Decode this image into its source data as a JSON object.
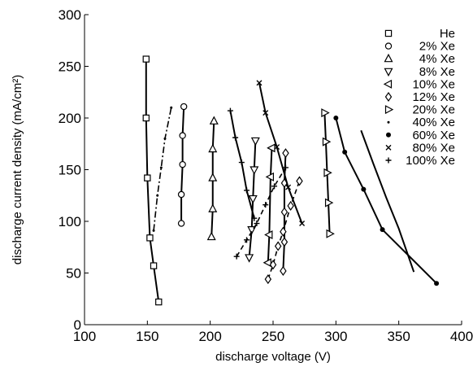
{
  "chart_data": {
    "type": "line",
    "title": "",
    "xlabel": "discharge voltage (V)",
    "ylabel": "discharge current density (mA/cm²)",
    "xlim": [
      100,
      400
    ],
    "ylim": [
      0,
      300
    ],
    "x_ticks": [
      "100",
      "150",
      "200",
      "250",
      "300",
      "350",
      "400"
    ],
    "y_ticks": [
      "0",
      "50",
      "100",
      "150",
      "200",
      "250",
      "300"
    ],
    "grid": false,
    "legend_position": "top-right",
    "series": [
      {
        "name": "He",
        "marker": "square",
        "line": "solid",
        "x": [
          149,
          149,
          150,
          152,
          155,
          159
        ],
        "y": [
          257,
          200,
          142,
          84,
          57,
          22
        ]
      },
      {
        "name": "2% Xe",
        "marker": "circle",
        "line": "solid",
        "x": [
          177,
          177,
          178,
          178,
          179
        ],
        "y": [
          98,
          126,
          155,
          183,
          211
        ]
      },
      {
        "name": "4% Xe",
        "marker": "triangle-up",
        "line": "solid",
        "x": [
          201,
          202,
          202,
          202,
          203
        ],
        "y": [
          85,
          112,
          142,
          170,
          197
        ]
      },
      {
        "name": "8% Xe",
        "marker": "triangle-down",
        "line": "solid",
        "x": [
          231,
          233,
          234,
          235,
          236
        ],
        "y": [
          65,
          92,
          122,
          150,
          178
        ]
      },
      {
        "name": "10% Xe",
        "marker": "triangle-left",
        "line": "solid",
        "x": [
          246,
          247,
          248,
          249
        ],
        "y": [
          60,
          87,
          143,
          171
        ]
      },
      {
        "name": "12% Xe",
        "marker": "diamond",
        "line": "solid",
        "x": [
          258,
          259,
          259,
          259,
          260
        ],
        "y": [
          52,
          80,
          109,
          137,
          166
        ]
      },
      {
        "name": "20% Xe",
        "marker": "triangle-right",
        "line": "solid",
        "x": [
          291,
          292,
          293,
          294,
          295
        ],
        "y": [
          205,
          177,
          147,
          118,
          88
        ]
      },
      {
        "name": "40% Xe",
        "marker": "dot",
        "line": "dashdot",
        "x": [
          155,
          158,
          161,
          164,
          169
        ],
        "y": [
          91,
          125,
          152,
          180,
          210
        ]
      },
      {
        "name": "60% Xe",
        "marker": "filled-circle",
        "line": "solid",
        "x": [
          300,
          307,
          322,
          337,
          380
        ],
        "y": [
          200,
          167,
          131,
          92,
          40
        ]
      },
      {
        "name": "80% Xe",
        "marker": "x",
        "line": "solid",
        "x": [
          239,
          244,
          253,
          262,
          273
        ],
        "y": [
          234,
          205,
          172,
          133,
          98
        ]
      },
      {
        "name": "100% Xe",
        "marker": "plus",
        "line": "solid",
        "x": [
          216,
          220,
          225,
          229,
          235
        ],
        "y": [
          207,
          181,
          157,
          130,
          103
        ]
      }
    ],
    "extra_curves": [
      {
        "marker": "none",
        "line": "solid",
        "x": [
          320,
          330,
          340,
          350,
          362
        ],
        "y": [
          188,
          155,
          123,
          93,
          51
        ]
      },
      {
        "marker": "diamond",
        "line": "dashed",
        "x": [
          246,
          250,
          254,
          258,
          264,
          271
        ],
        "y": [
          44,
          58,
          76,
          90,
          115,
          139
        ]
      },
      {
        "marker": "plus",
        "line": "dashed",
        "x": [
          221,
          229,
          237,
          244,
          251,
          260
        ],
        "y": [
          66,
          82,
          98,
          116,
          134,
          152
        ]
      }
    ]
  }
}
